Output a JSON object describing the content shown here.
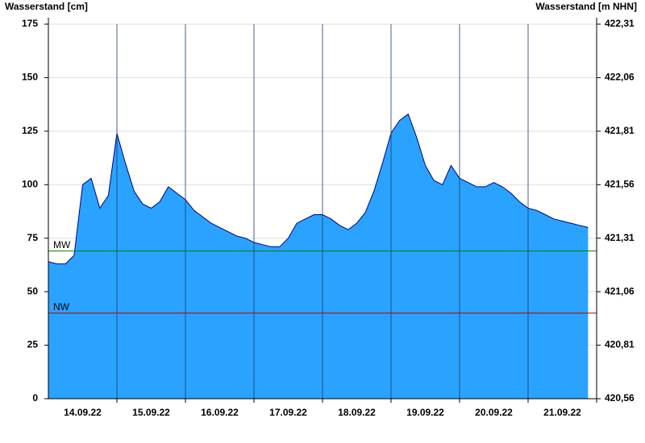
{
  "chart_data": {
    "type": "area",
    "y_label": "Wasserstand [cm]",
    "y2_label": "Wasserstand [m NHN]",
    "categories": [
      "14.09.22",
      "15.09.22",
      "16.09.22",
      "17.09.22",
      "18.09.22",
      "19.09.22",
      "20.09.22",
      "21.09.22"
    ],
    "values": [
      [
        64,
        63,
        63,
        67,
        100,
        103,
        89,
        95
      ],
      [
        124,
        110,
        97,
        91,
        89,
        92,
        99,
        96
      ],
      [
        93,
        88,
        85,
        82,
        80,
        78,
        76,
        75
      ],
      [
        73,
        72,
        71,
        71,
        75,
        82,
        84,
        86
      ],
      [
        86,
        84,
        81,
        79,
        82,
        87,
        97,
        110
      ],
      [
        124,
        130,
        133,
        122,
        109,
        102,
        100,
        109
      ],
      [
        103,
        101,
        99,
        99,
        101,
        99,
        96,
        92
      ],
      [
        89,
        88,
        86,
        84,
        83,
        82,
        81,
        80
      ]
    ],
    "color": "#29a3ff",
    "line_color": "#00008b",
    "ylim": [
      0,
      175
    ],
    "yticks": [
      0,
      25,
      50,
      75,
      100,
      125,
      150,
      175
    ],
    "y2lim": [
      420.56,
      422.31
    ],
    "y2ticks": [
      {
        "value": 420.56,
        "label": "420,56"
      },
      {
        "value": 420.81,
        "label": "420,81"
      },
      {
        "value": 421.06,
        "label": "421,06"
      },
      {
        "value": 421.31,
        "label": "421,31"
      },
      {
        "value": 421.56,
        "label": "421,56"
      },
      {
        "value": 421.81,
        "label": "421,81"
      },
      {
        "value": 422.06,
        "label": "422,06"
      },
      {
        "value": 422.31,
        "label": "422,31"
      }
    ],
    "grid": true,
    "reference_lines": [
      {
        "label": "MW",
        "value": 69,
        "color": "#008000"
      },
      {
        "label": "NW",
        "value": 40,
        "color": "#c00000"
      }
    ]
  }
}
